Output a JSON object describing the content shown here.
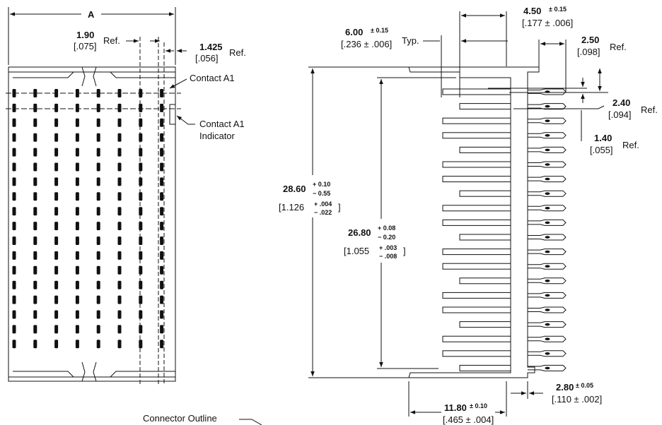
{
  "top_view": {
    "dim_a": "A",
    "dim_190": {
      "value": "1.90",
      "inch": "[.075]",
      "suffix": "Ref."
    },
    "dim_1425": {
      "value": "1.425",
      "inch": "[.056]",
      "suffix": "Ref."
    },
    "contact_a1": "Contact A1",
    "indicator_line1": "Contact A1",
    "indicator_line2": "Indicator",
    "columns": 8,
    "rows": 18
  },
  "side_view": {
    "dim_600": {
      "value": "6.00",
      "tol": "± 0.15",
      "inch": "[.236 ± .006]",
      "suffix": "Typ."
    },
    "dim_450": {
      "value": "4.50",
      "tol": "± 0.15",
      "inch": "[.177 ± .006]"
    },
    "dim_250": {
      "value": "2.50",
      "inch": "[.098]",
      "suffix": "Ref."
    },
    "dim_240": {
      "value": "2.40",
      "inch": "[.094]",
      "suffix": "Ref."
    },
    "dim_140": {
      "value": "1.40",
      "inch": "[.055]",
      "suffix": "Ref."
    },
    "dim_2860": {
      "value": "28.60",
      "tol_plus": "+ 0.10",
      "tol_minus": "− 0.55",
      "inch_open": "[1.126",
      "inch_plus": "+ .004",
      "inch_minus": "− .022",
      "inch_close": "]"
    },
    "dim_2680": {
      "value": "26.80",
      "tol_plus": "+ 0.08",
      "tol_minus": "− 0.20",
      "inch_open": "[1.055",
      "inch_plus": "+ .003",
      "inch_minus": "− .008",
      "inch_close": "]"
    },
    "dim_1180": {
      "value": "11.80",
      "tol": "± 0.10",
      "inch": "[.465 ± .004]"
    },
    "dim_280": {
      "value": "2.80",
      "tol": "± 0.05",
      "inch": "[.110 ± .002]"
    },
    "pins": 20
  },
  "caption": "Connector Outline"
}
